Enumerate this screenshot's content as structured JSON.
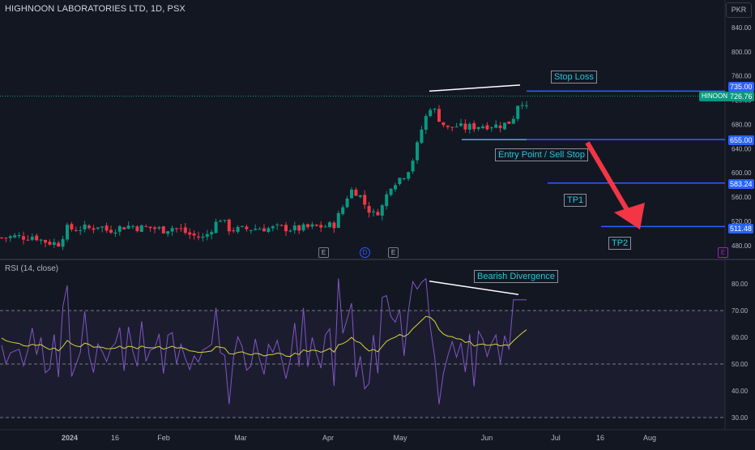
{
  "header": {
    "symbol_title": "HIGHNOON LABORATORIES LTD, 1D, PSX",
    "currency": "PKR"
  },
  "indicator": {
    "title": "RSI (14, close)"
  },
  "colors": {
    "bg": "#131722",
    "up": "#089981",
    "down": "#f23645",
    "line": "#2962ff",
    "rsi": "#7e57c2",
    "rsi_ma": "#d4d43a",
    "annotation": "#26c6da",
    "arrow": "#f23645"
  },
  "price_axis": {
    "ticks": [
      "840.00",
      "800.00",
      "760.00",
      "720.00",
      "680.00",
      "640.00",
      "600.00",
      "560.00",
      "520.00",
      "480.00"
    ]
  },
  "rsi_axis": {
    "ticks": [
      "80.00",
      "70.00",
      "60.00",
      "50.00",
      "40.00",
      "30.00"
    ]
  },
  "time_axis": {
    "ticks": [
      "2024",
      "16",
      "Feb",
      "Mar",
      "Apr",
      "May",
      "Jun",
      "Jul",
      "16",
      "Aug"
    ]
  },
  "price_tags": {
    "stop": "735.00",
    "last": "726.76",
    "entry": "655.00",
    "tp1": "583.24",
    "tp2": "511.48",
    "symbol": "HINOON"
  },
  "annotations": {
    "stop_loss": "Stop Loss",
    "entry": "Entry Point / Sell Stop",
    "tp1": "TP1",
    "tp2": "TP2",
    "divergence": "Bearish Divergence"
  },
  "events": [
    "E",
    "D",
    "E",
    "E"
  ],
  "chart_data": {
    "type": "candlestick",
    "series": [
      {
        "name": "HIGHNOON",
        "close_points": [
          [
            0,
            493
          ],
          [
            10,
            494
          ],
          [
            20,
            495
          ],
          [
            30,
            494
          ],
          [
            40,
            496
          ],
          [
            50,
            488
          ],
          [
            60,
            485
          ],
          [
            70,
            483
          ],
          [
            80,
            508
          ],
          [
            90,
            507
          ],
          [
            100,
            509
          ],
          [
            110,
            508
          ],
          [
            120,
            514
          ],
          [
            130,
            505
          ],
          [
            140,
            508
          ],
          [
            150,
            511
          ],
          [
            160,
            513
          ],
          [
            170,
            509
          ],
          [
            180,
            510
          ],
          [
            190,
            508
          ],
          [
            200,
            506
          ],
          [
            210,
            510
          ],
          [
            220,
            507
          ],
          [
            230,
            499
          ],
          [
            240,
            495
          ],
          [
            250,
            492
          ],
          [
            260,
            510
          ],
          [
            270,
            525
          ],
          [
            280,
            508
          ],
          [
            290,
            506
          ],
          [
            300,
            507
          ],
          [
            310,
            508
          ],
          [
            320,
            509
          ],
          [
            330,
            508
          ],
          [
            340,
            509
          ],
          [
            350,
            509
          ],
          [
            360,
            507
          ],
          [
            370,
            508
          ],
          [
            380,
            510
          ],
          [
            390,
            511
          ],
          [
            400,
            512
          ],
          [
            410,
            514
          ],
          [
            420,
            540
          ],
          [
            430,
            572
          ],
          [
            440,
            568
          ],
          [
            450,
            544
          ],
          [
            460,
            530
          ],
          [
            470,
            545
          ],
          [
            480,
            580
          ],
          [
            490,
            590
          ],
          [
            500,
            600
          ],
          [
            510,
            630
          ],
          [
            520,
            680
          ],
          [
            530,
            712
          ],
          [
            540,
            690
          ],
          [
            550,
            672
          ],
          [
            560,
            678
          ],
          [
            570,
            674
          ],
          [
            580,
            676
          ],
          [
            590,
            678
          ],
          [
            600,
            679
          ],
          [
            610,
            678
          ],
          [
            620,
            680
          ],
          [
            630,
            686
          ],
          [
            640,
            725
          ],
          [
            650,
            700
          ]
        ]
      }
    ],
    "levels": {
      "stop_loss": 735.0,
      "last": 726.76,
      "entry": 655.0,
      "tp1": 583.24,
      "tp2": 511.48
    },
    "rsi": {
      "overbought": 70,
      "oversold": 30,
      "mid": 50
    },
    "ylim": [
      460,
      860
    ]
  }
}
